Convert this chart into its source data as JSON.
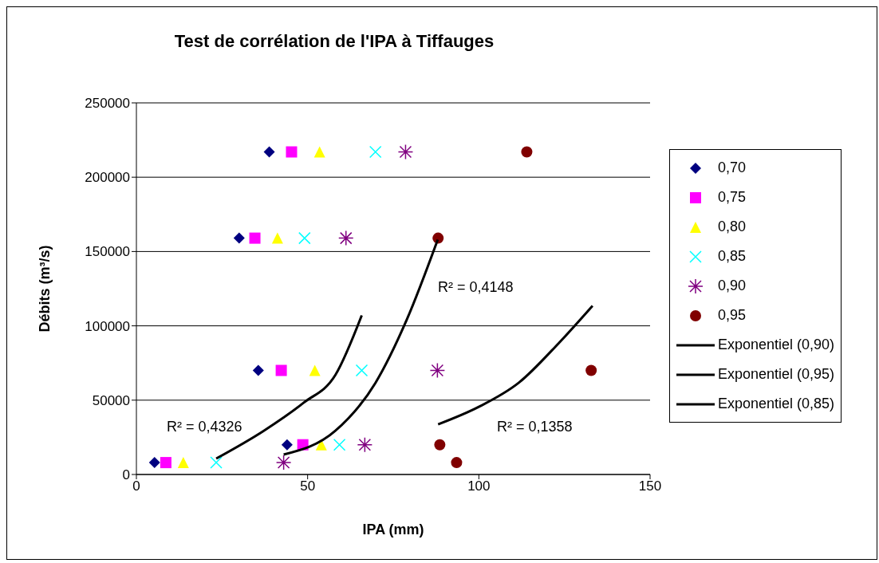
{
  "chart_data": {
    "type": "scatter",
    "title": "Test de corrélation de l'IPA à Tiffauges",
    "xlabel": "IPA (mm)",
    "ylabel": "Débits (m³/s)",
    "xlim": [
      0,
      150
    ],
    "xticks": [
      0,
      50,
      100,
      150
    ],
    "ylim": [
      0,
      250000
    ],
    "yticks": [
      0,
      50000,
      100000,
      150000,
      200000,
      250000
    ],
    "grid": "y",
    "legend": "right",
    "series": [
      {
        "name": "0,70",
        "color": "#000080",
        "marker": "diamond",
        "x": [
          38.8,
          30,
          35.6,
          44,
          5.3
        ],
        "values": [
          217000,
          159000,
          70000,
          20000,
          8000
        ]
      },
      {
        "name": "0,75",
        "color": "#ff00ff",
        "marker": "square",
        "x": [
          45.3,
          34.6,
          42.3,
          48.6,
          8.6
        ],
        "values": [
          217000,
          159000,
          70000,
          20000,
          8000
        ]
      },
      {
        "name": "0,80",
        "color": "#ffff00",
        "marker": "triangle",
        "x": [
          53.5,
          41.2,
          52.1,
          54,
          13.7
        ],
        "values": [
          217000,
          159000,
          70000,
          20000,
          8000
        ]
      },
      {
        "name": "0,85",
        "color": "#00ffff",
        "marker": "cross",
        "x": [
          69.8,
          49.1,
          65.8,
          59.3,
          23.3
        ],
        "values": [
          217000,
          159000,
          70000,
          20000,
          8000
        ]
      },
      {
        "name": "0,90",
        "color": "#800080",
        "x": [
          78.6,
          61.2,
          87.9,
          66.7,
          43
        ],
        "values": [
          217000,
          159000,
          70000,
          20000,
          8000
        ]
      },
      {
        "name": "0,95",
        "color": "#800000",
        "marker": "circle",
        "x": [
          114,
          88.1,
          132.8,
          88.6,
          93.5
        ],
        "values": [
          217000,
          159000,
          70000,
          20000,
          8000
        ]
      },
      {
        "name": "Exponentiel (0,90)",
        "type": "line",
        "color": "#000000",
        "marker": "none",
        "x": [
          43,
          58.1,
          69.8,
          79,
          88
        ],
        "values": [
          13400,
          29400,
          61600,
          104400,
          158000
        ]
      },
      {
        "name": "Exponentiel (0,95)",
        "type": "line",
        "color": "#000000",
        "marker": "none",
        "x": [
          88.1,
          100,
          111.6,
          123.3,
          133.2
        ],
        "values": [
          33700,
          45500,
          61600,
          88300,
          113500
        ]
      },
      {
        "name": "Exponentiel (0,85)",
        "type": "line",
        "color": "#000000",
        "marker": "none",
        "x": [
          23.3,
          37.2,
          48.8,
          58.1,
          65.8
        ],
        "values": [
          10700,
          29400,
          48200,
          66900,
          107000
        ]
      }
    ],
    "annotations": [
      "R² = 0,4326",
      "R² = 0,4148",
      "R² = 0,1358"
    ]
  }
}
